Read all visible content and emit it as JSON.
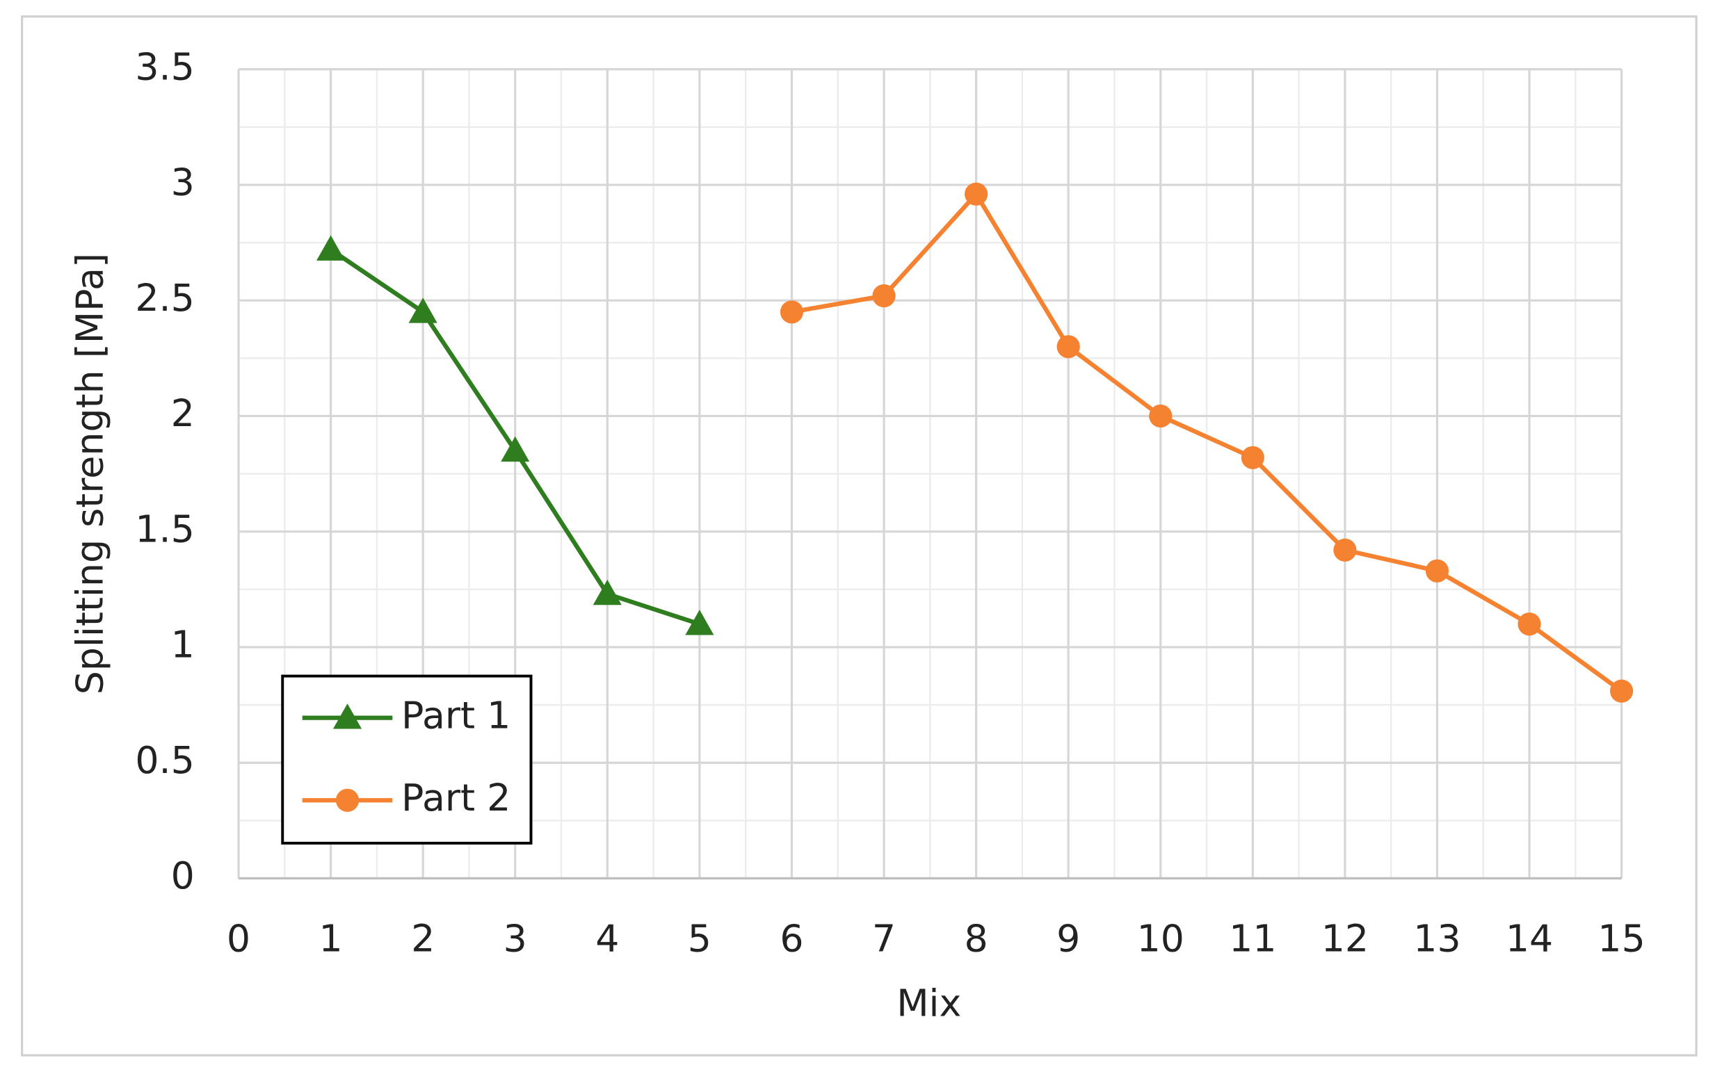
{
  "chart_data": {
    "type": "line",
    "x_label": "Mix",
    "y_label": "Splitting strength [MPa]",
    "x": [
      1,
      2,
      3,
      4,
      5,
      6,
      7,
      8,
      9,
      10,
      11,
      12,
      13,
      14,
      15
    ],
    "series": [
      {
        "name": "Part 1",
        "color": "#2e7d1e",
        "marker": "triangle",
        "values": [
          2.72,
          2.45,
          1.85,
          1.23,
          1.1,
          null,
          null,
          null,
          null,
          null,
          null,
          null,
          null,
          null,
          null
        ]
      },
      {
        "name": "Part 2",
        "color": "#f58231",
        "marker": "circle",
        "values": [
          null,
          null,
          null,
          null,
          null,
          2.45,
          2.52,
          2.96,
          2.3,
          2.0,
          1.82,
          1.42,
          1.33,
          1.1,
          0.81
        ]
      }
    ],
    "xlim": [
      0,
      15
    ],
    "xticks": [
      0,
      1,
      2,
      3,
      4,
      5,
      6,
      7,
      8,
      9,
      10,
      11,
      12,
      13,
      14,
      15
    ],
    "ylim": [
      0,
      3.5
    ],
    "yticks": [
      0,
      0.5,
      1,
      1.5,
      2,
      2.5,
      3,
      3.5
    ],
    "grid": true,
    "minor_grid": true,
    "legend": "lower left"
  }
}
